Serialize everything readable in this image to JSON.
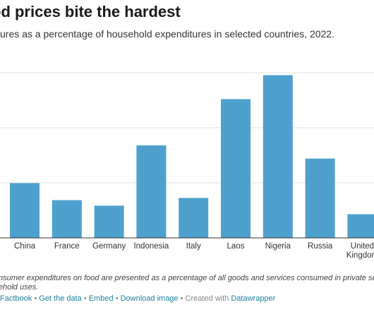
{
  "title": "od prices bite the hardest",
  "subtitle": "ures as a percentage of household expenditures in selected countries, 2022.",
  "notes": {
    "line1": "nsumer expenditures on food are presented as a percentage of all goods and services consumed in private setti",
    "line2": "ehold uses."
  },
  "footer": {
    "link1": "Factbook",
    "link2": "Get the data",
    "link3": "Embed",
    "link4": "Download image",
    "created": "Created with",
    "brand": "Datawrapper",
    "separator": "•"
  },
  "colors": {
    "bar": "#4ea1cd",
    "grid": "#e0e0e0",
    "axis": "#333333",
    "link": "#1d81a2"
  },
  "chart_data": {
    "type": "bar",
    "categories": [
      "China",
      "France",
      "Germany",
      "Indonesia",
      "Italy",
      "Laos",
      "Nigeria",
      "Russia",
      "United Kingdom"
    ],
    "category_lines": [
      [
        "China"
      ],
      [
        "France"
      ],
      [
        "Germany"
      ],
      [
        "Indonesia"
      ],
      [
        "Italy"
      ],
      [
        "Laos"
      ],
      [
        "Nigeria"
      ],
      [
        "Russia"
      ],
      [
        "United",
        "Kingdom"
      ]
    ],
    "values": [
      19.9,
      13.7,
      11.7,
      33.6,
      14.5,
      50.4,
      59.1,
      28.8,
      8.6
    ],
    "ylim": [
      0,
      60
    ],
    "grid": true,
    "legend": "none"
  }
}
